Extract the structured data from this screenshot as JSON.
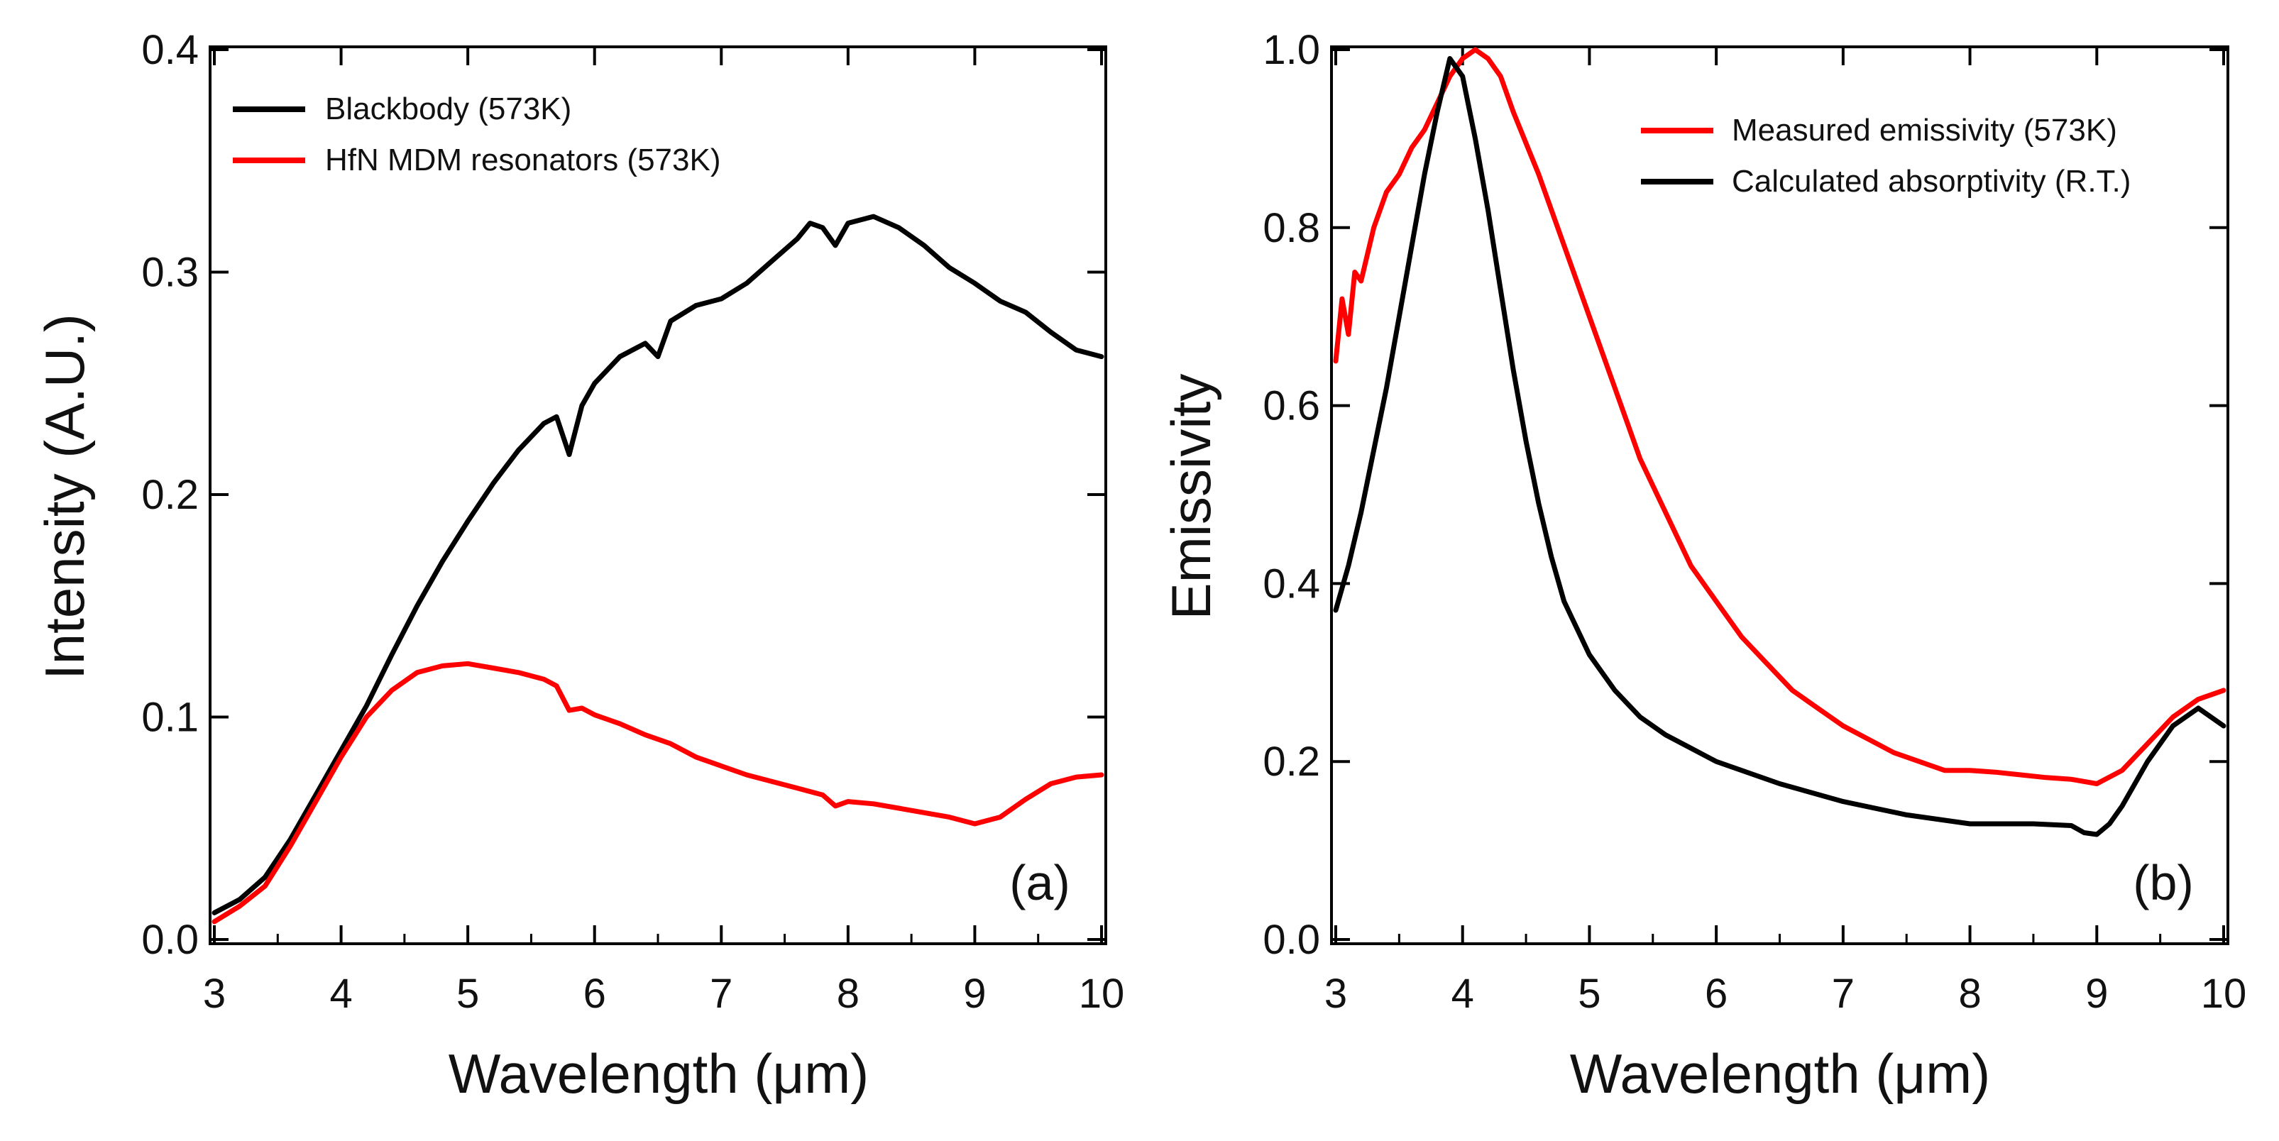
{
  "chart_data": [
    {
      "type": "line",
      "panel_label": "(a)",
      "xlabel": "Wavelength (μm)",
      "ylabel": "Intensity (A.U.)",
      "xlim": [
        3,
        10
      ],
      "ylim": [
        0,
        0.4
      ],
      "xticks": [
        3,
        4,
        5,
        6,
        7,
        8,
        9,
        10
      ],
      "yticks": [
        0.0,
        0.1,
        0.2,
        0.3,
        0.4
      ],
      "ytick_labels": [
        "0.0",
        "0.1",
        "0.2",
        "0.3",
        "0.4"
      ],
      "xtick_labels": [
        "3",
        "4",
        "5",
        "6",
        "7",
        "8",
        "9",
        "10"
      ],
      "legend_position": "top-left",
      "series": [
        {
          "name": "Blackbody (573K)",
          "color": "#000000",
          "x": [
            3.0,
            3.2,
            3.4,
            3.6,
            3.8,
            4.0,
            4.2,
            4.4,
            4.6,
            4.8,
            5.0,
            5.2,
            5.4,
            5.6,
            5.7,
            5.8,
            5.9,
            6.0,
            6.2,
            6.4,
            6.5,
            6.6,
            6.8,
            7.0,
            7.2,
            7.4,
            7.6,
            7.7,
            7.8,
            7.9,
            8.0,
            8.2,
            8.4,
            8.6,
            8.8,
            9.0,
            9.2,
            9.4,
            9.6,
            9.8,
            10.0
          ],
          "values": [
            0.012,
            0.018,
            0.028,
            0.045,
            0.065,
            0.085,
            0.105,
            0.128,
            0.15,
            0.17,
            0.188,
            0.205,
            0.22,
            0.232,
            0.235,
            0.218,
            0.24,
            0.25,
            0.262,
            0.268,
            0.262,
            0.278,
            0.285,
            0.288,
            0.295,
            0.305,
            0.315,
            0.322,
            0.32,
            0.312,
            0.322,
            0.325,
            0.32,
            0.312,
            0.302,
            0.295,
            0.287,
            0.282,
            0.273,
            0.265,
            0.262
          ]
        },
        {
          "name": "HfN MDM resonators (573K)",
          "color": "#ff0000",
          "x": [
            3.0,
            3.2,
            3.4,
            3.6,
            3.8,
            4.0,
            4.2,
            4.4,
            4.6,
            4.8,
            5.0,
            5.2,
            5.4,
            5.6,
            5.7,
            5.8,
            5.9,
            6.0,
            6.2,
            6.4,
            6.6,
            6.8,
            7.0,
            7.2,
            7.4,
            7.6,
            7.8,
            7.9,
            8.0,
            8.2,
            8.4,
            8.6,
            8.8,
            9.0,
            9.2,
            9.4,
            9.6,
            9.8,
            10.0
          ],
          "values": [
            0.008,
            0.015,
            0.024,
            0.042,
            0.062,
            0.082,
            0.1,
            0.112,
            0.12,
            0.123,
            0.124,
            0.122,
            0.12,
            0.117,
            0.114,
            0.103,
            0.104,
            0.101,
            0.097,
            0.092,
            0.088,
            0.082,
            0.078,
            0.074,
            0.071,
            0.068,
            0.065,
            0.06,
            0.062,
            0.061,
            0.059,
            0.057,
            0.055,
            0.052,
            0.055,
            0.063,
            0.07,
            0.073,
            0.074
          ]
        }
      ]
    },
    {
      "type": "line",
      "panel_label": "(b)",
      "xlabel": "Wavelength (μm)",
      "ylabel": "Emissivity",
      "xlim": [
        3,
        10
      ],
      "ylim": [
        0,
        1.0
      ],
      "xticks": [
        3,
        4,
        5,
        6,
        7,
        8,
        9,
        10
      ],
      "yticks": [
        0.0,
        0.2,
        0.4,
        0.6,
        0.8,
        1.0
      ],
      "ytick_labels": [
        "0.0",
        "0.2",
        "0.4",
        "0.6",
        "0.8",
        "1.0"
      ],
      "xtick_labels": [
        "3",
        "4",
        "5",
        "6",
        "7",
        "8",
        "9",
        "10"
      ],
      "legend_position": "top-right",
      "series": [
        {
          "name": "Measured emissivity (573K)",
          "color": "#ff0000",
          "x": [
            3.0,
            3.05,
            3.1,
            3.15,
            3.2,
            3.3,
            3.4,
            3.5,
            3.6,
            3.7,
            3.8,
            3.9,
            4.0,
            4.1,
            4.2,
            4.3,
            4.4,
            4.6,
            4.8,
            5.0,
            5.2,
            5.4,
            5.6,
            5.8,
            6.0,
            6.2,
            6.4,
            6.6,
            6.8,
            7.0,
            7.2,
            7.4,
            7.6,
            7.8,
            8.0,
            8.2,
            8.4,
            8.6,
            8.8,
            9.0,
            9.2,
            9.4,
            9.6,
            9.8,
            10.0
          ],
          "values": [
            0.65,
            0.72,
            0.68,
            0.75,
            0.74,
            0.8,
            0.84,
            0.86,
            0.89,
            0.91,
            0.94,
            0.97,
            0.99,
            1.0,
            0.99,
            0.97,
            0.93,
            0.86,
            0.78,
            0.7,
            0.62,
            0.54,
            0.48,
            0.42,
            0.38,
            0.34,
            0.31,
            0.28,
            0.26,
            0.24,
            0.225,
            0.21,
            0.2,
            0.19,
            0.19,
            0.188,
            0.185,
            0.182,
            0.18,
            0.175,
            0.19,
            0.22,
            0.25,
            0.27,
            0.28
          ]
        },
        {
          "name": "Calculated absorptivity (R.T.)",
          "color": "#000000",
          "x": [
            3.0,
            3.1,
            3.2,
            3.3,
            3.4,
            3.5,
            3.6,
            3.7,
            3.8,
            3.9,
            4.0,
            4.1,
            4.2,
            4.3,
            4.4,
            4.5,
            4.6,
            4.7,
            4.8,
            5.0,
            5.2,
            5.4,
            5.6,
            5.8,
            6.0,
            6.5,
            7.0,
            7.5,
            8.0,
            8.5,
            8.8,
            8.9,
            9.0,
            9.1,
            9.2,
            9.4,
            9.6,
            9.8,
            10.0
          ],
          "values": [
            0.37,
            0.42,
            0.48,
            0.55,
            0.62,
            0.7,
            0.78,
            0.86,
            0.93,
            0.99,
            0.97,
            0.9,
            0.82,
            0.73,
            0.64,
            0.56,
            0.49,
            0.43,
            0.38,
            0.32,
            0.28,
            0.25,
            0.23,
            0.215,
            0.2,
            0.175,
            0.155,
            0.14,
            0.13,
            0.13,
            0.128,
            0.12,
            0.118,
            0.13,
            0.15,
            0.2,
            0.24,
            0.26,
            0.24
          ]
        }
      ]
    }
  ]
}
